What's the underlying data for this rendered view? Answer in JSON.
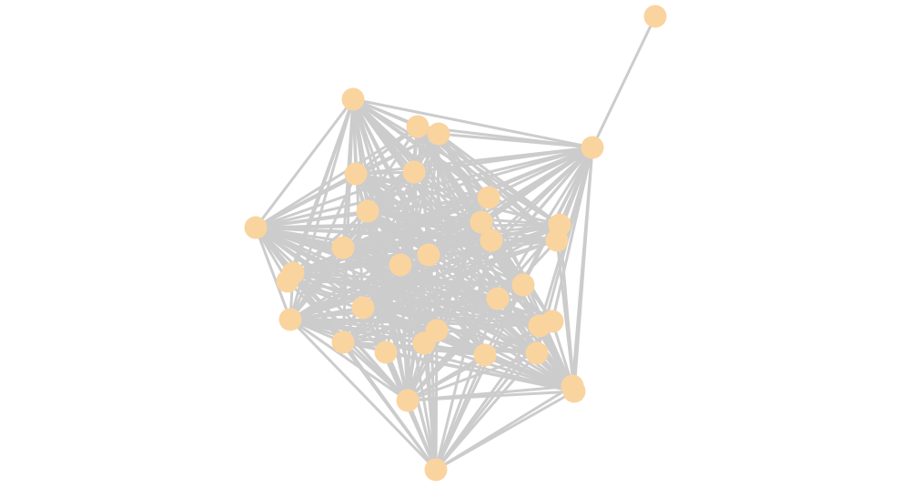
{
  "graph": {
    "node_color": "#fad49f",
    "edge_color": "#cccccc",
    "nodes": [
      "1",
      "2",
      "3",
      "4",
      "5",
      "6",
      "7",
      "8",
      "9",
      "10",
      "11",
      "12",
      "13",
      "14",
      "15",
      "16",
      "17",
      "18",
      "19",
      "20",
      "21",
      "22",
      "23",
      "24",
      "25",
      "26",
      "27",
      "28",
      "29",
      "30",
      "31",
      "32",
      "33",
      "34",
      "35"
    ],
    "adjacency": {
      "1": [
        2
      ],
      "2": [
        3,
        4,
        5,
        6,
        7,
        8,
        9,
        10,
        11,
        12,
        13,
        14,
        15,
        16,
        17,
        18,
        20,
        21,
        22,
        24,
        25,
        26,
        27,
        29,
        30,
        31,
        32,
        33
      ],
      "3": [
        4,
        5,
        6,
        7,
        8,
        9,
        10,
        11,
        12,
        13,
        14,
        15,
        16,
        17,
        18,
        19,
        20,
        21,
        22,
        23,
        25,
        26,
        27,
        28,
        29,
        30,
        31,
        32,
        34
      ],
      "10": [
        4,
        5,
        6,
        7,
        8,
        9,
        11,
        12,
        13,
        14,
        15,
        16,
        17,
        18,
        19,
        20,
        21,
        22,
        23,
        24,
        25,
        26,
        27,
        28,
        29,
        30,
        31,
        33,
        34,
        35
      ],
      "35": [
        6,
        7,
        9,
        14,
        15,
        16,
        17,
        18,
        20,
        21,
        22,
        23,
        24,
        25,
        26,
        27,
        28,
        29,
        30,
        31,
        32,
        33,
        34
      ],
      "33": [
        4,
        5,
        6,
        7,
        8,
        9,
        11,
        12,
        13,
        14,
        15,
        16,
        17,
        18,
        19,
        20,
        21,
        22,
        23,
        24,
        25,
        26,
        27,
        28,
        29,
        30,
        31,
        32,
        34
      ],
      "23": [
        4,
        5,
        6,
        7,
        8,
        9,
        11,
        12,
        13,
        14,
        15,
        16,
        17,
        18,
        20,
        21,
        22,
        24,
        25,
        26,
        27,
        28,
        29,
        30,
        31,
        34
      ],
      "34": [
        5,
        6,
        7,
        8,
        9,
        11,
        12,
        13,
        14,
        15,
        16,
        17,
        18,
        19,
        20,
        21,
        22,
        24,
        25,
        26,
        27,
        28,
        29,
        30,
        31,
        32
      ],
      "4": [
        5,
        6,
        7,
        8,
        11,
        12,
        13,
        14,
        16,
        17,
        20,
        21,
        24,
        25,
        26,
        30,
        31
      ],
      "5": [
        6,
        7,
        8,
        9,
        12,
        13,
        15,
        17,
        20,
        22,
        24,
        26,
        28,
        29
      ],
      "6": [
        7,
        8,
        11,
        12,
        14,
        16,
        17,
        20,
        21,
        24,
        26,
        30,
        31
      ],
      "9": [
        8,
        11,
        12,
        13,
        14,
        16,
        20,
        21,
        24,
        25,
        27,
        30
      ],
      "15": [
        8,
        11,
        12,
        13,
        14,
        16,
        20,
        21,
        24,
        25,
        26,
        30,
        31
      ],
      "22": [
        8,
        11,
        12,
        13,
        14,
        16,
        17,
        20,
        21,
        24,
        25,
        26
      ],
      "28": [
        7,
        8,
        11,
        12,
        14,
        16,
        20,
        21,
        24,
        30,
        31
      ],
      "18": [
        7,
        8,
        11,
        12,
        13,
        14,
        16,
        20,
        21,
        24,
        25,
        30
      ],
      "19": [
        8,
        12,
        14,
        20,
        24,
        31
      ]
    }
  }
}
